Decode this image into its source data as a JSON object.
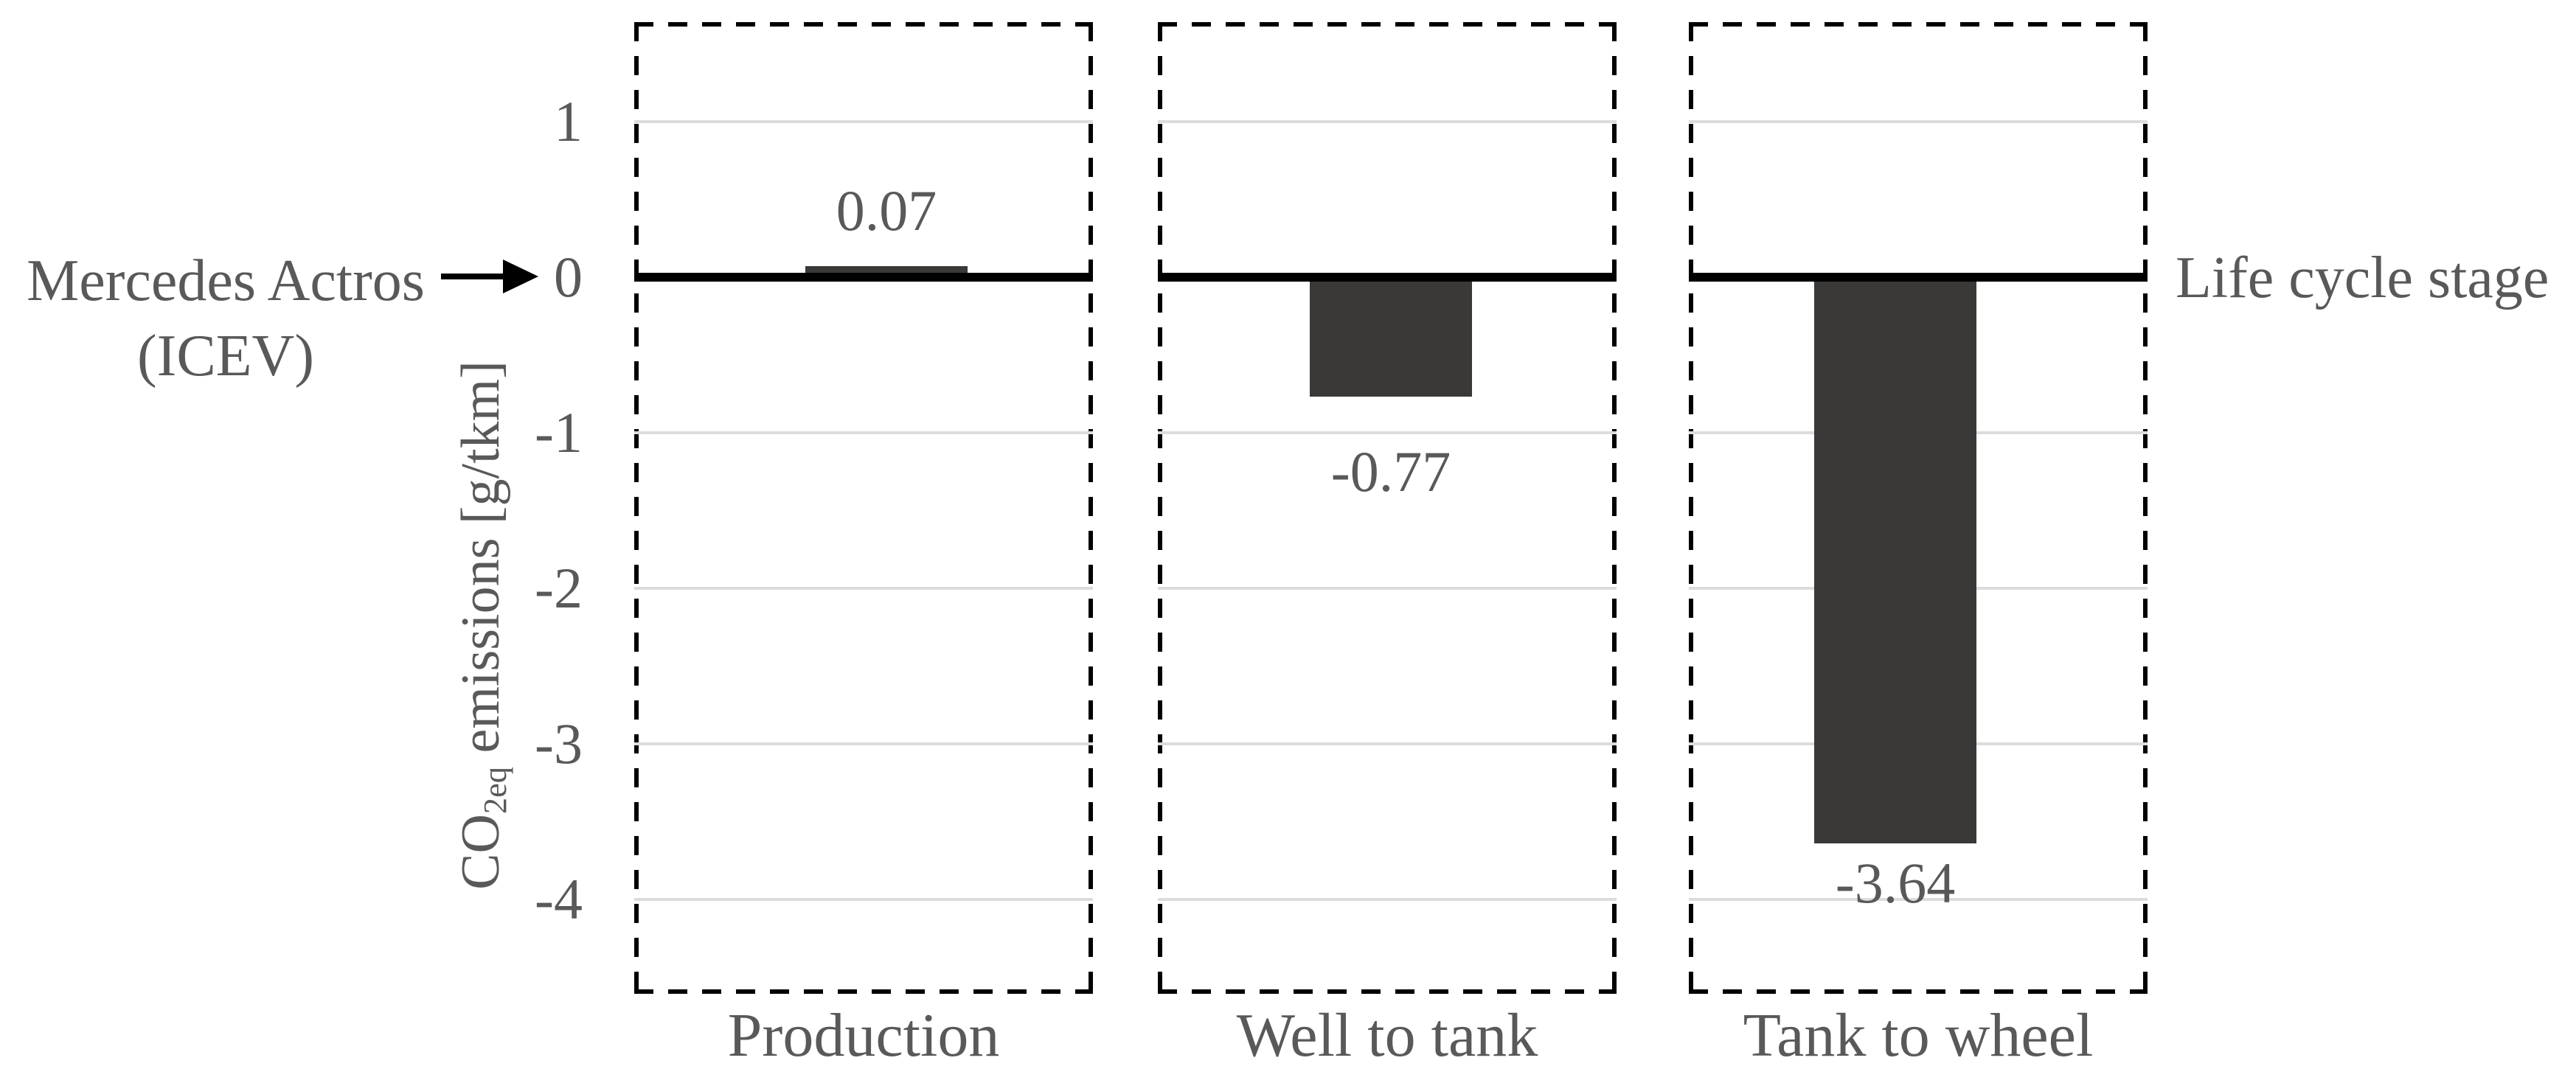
{
  "chart_data": {
    "type": "bar",
    "categories": [
      "Production",
      "Well to tank",
      "Tank to wheel"
    ],
    "values": [
      0.07,
      -0.77,
      -3.64
    ],
    "value_labels": [
      "0.07",
      "-0.77",
      "-3.64"
    ],
    "series_label": {
      "line1": "Mercedes Actros",
      "line2": "(ICEV)"
    },
    "x_axis_title": "Life cycle stage",
    "y_axis_title": {
      "prefix": "CO",
      "subscript": "2eq",
      "suffix": " emissions [g/tkm]"
    },
    "ylabel": "CO2eq emissions [g/tkm]",
    "xlabel": "Life cycle stage",
    "y_tick_labels": [
      "1",
      "0",
      "-1",
      "-2",
      "-3",
      "-4"
    ],
    "y_tick_values": [
      1,
      0,
      -1,
      -2,
      -3,
      -4
    ],
    "ylim": [
      -4.63,
      1.64
    ],
    "grid": true,
    "legend": "none",
    "colors": {
      "bar": "#3a3938",
      "text": "#595959",
      "gridline": "#dcdcdc",
      "zero_line": "#000000",
      "panel_border": "#000000"
    }
  }
}
